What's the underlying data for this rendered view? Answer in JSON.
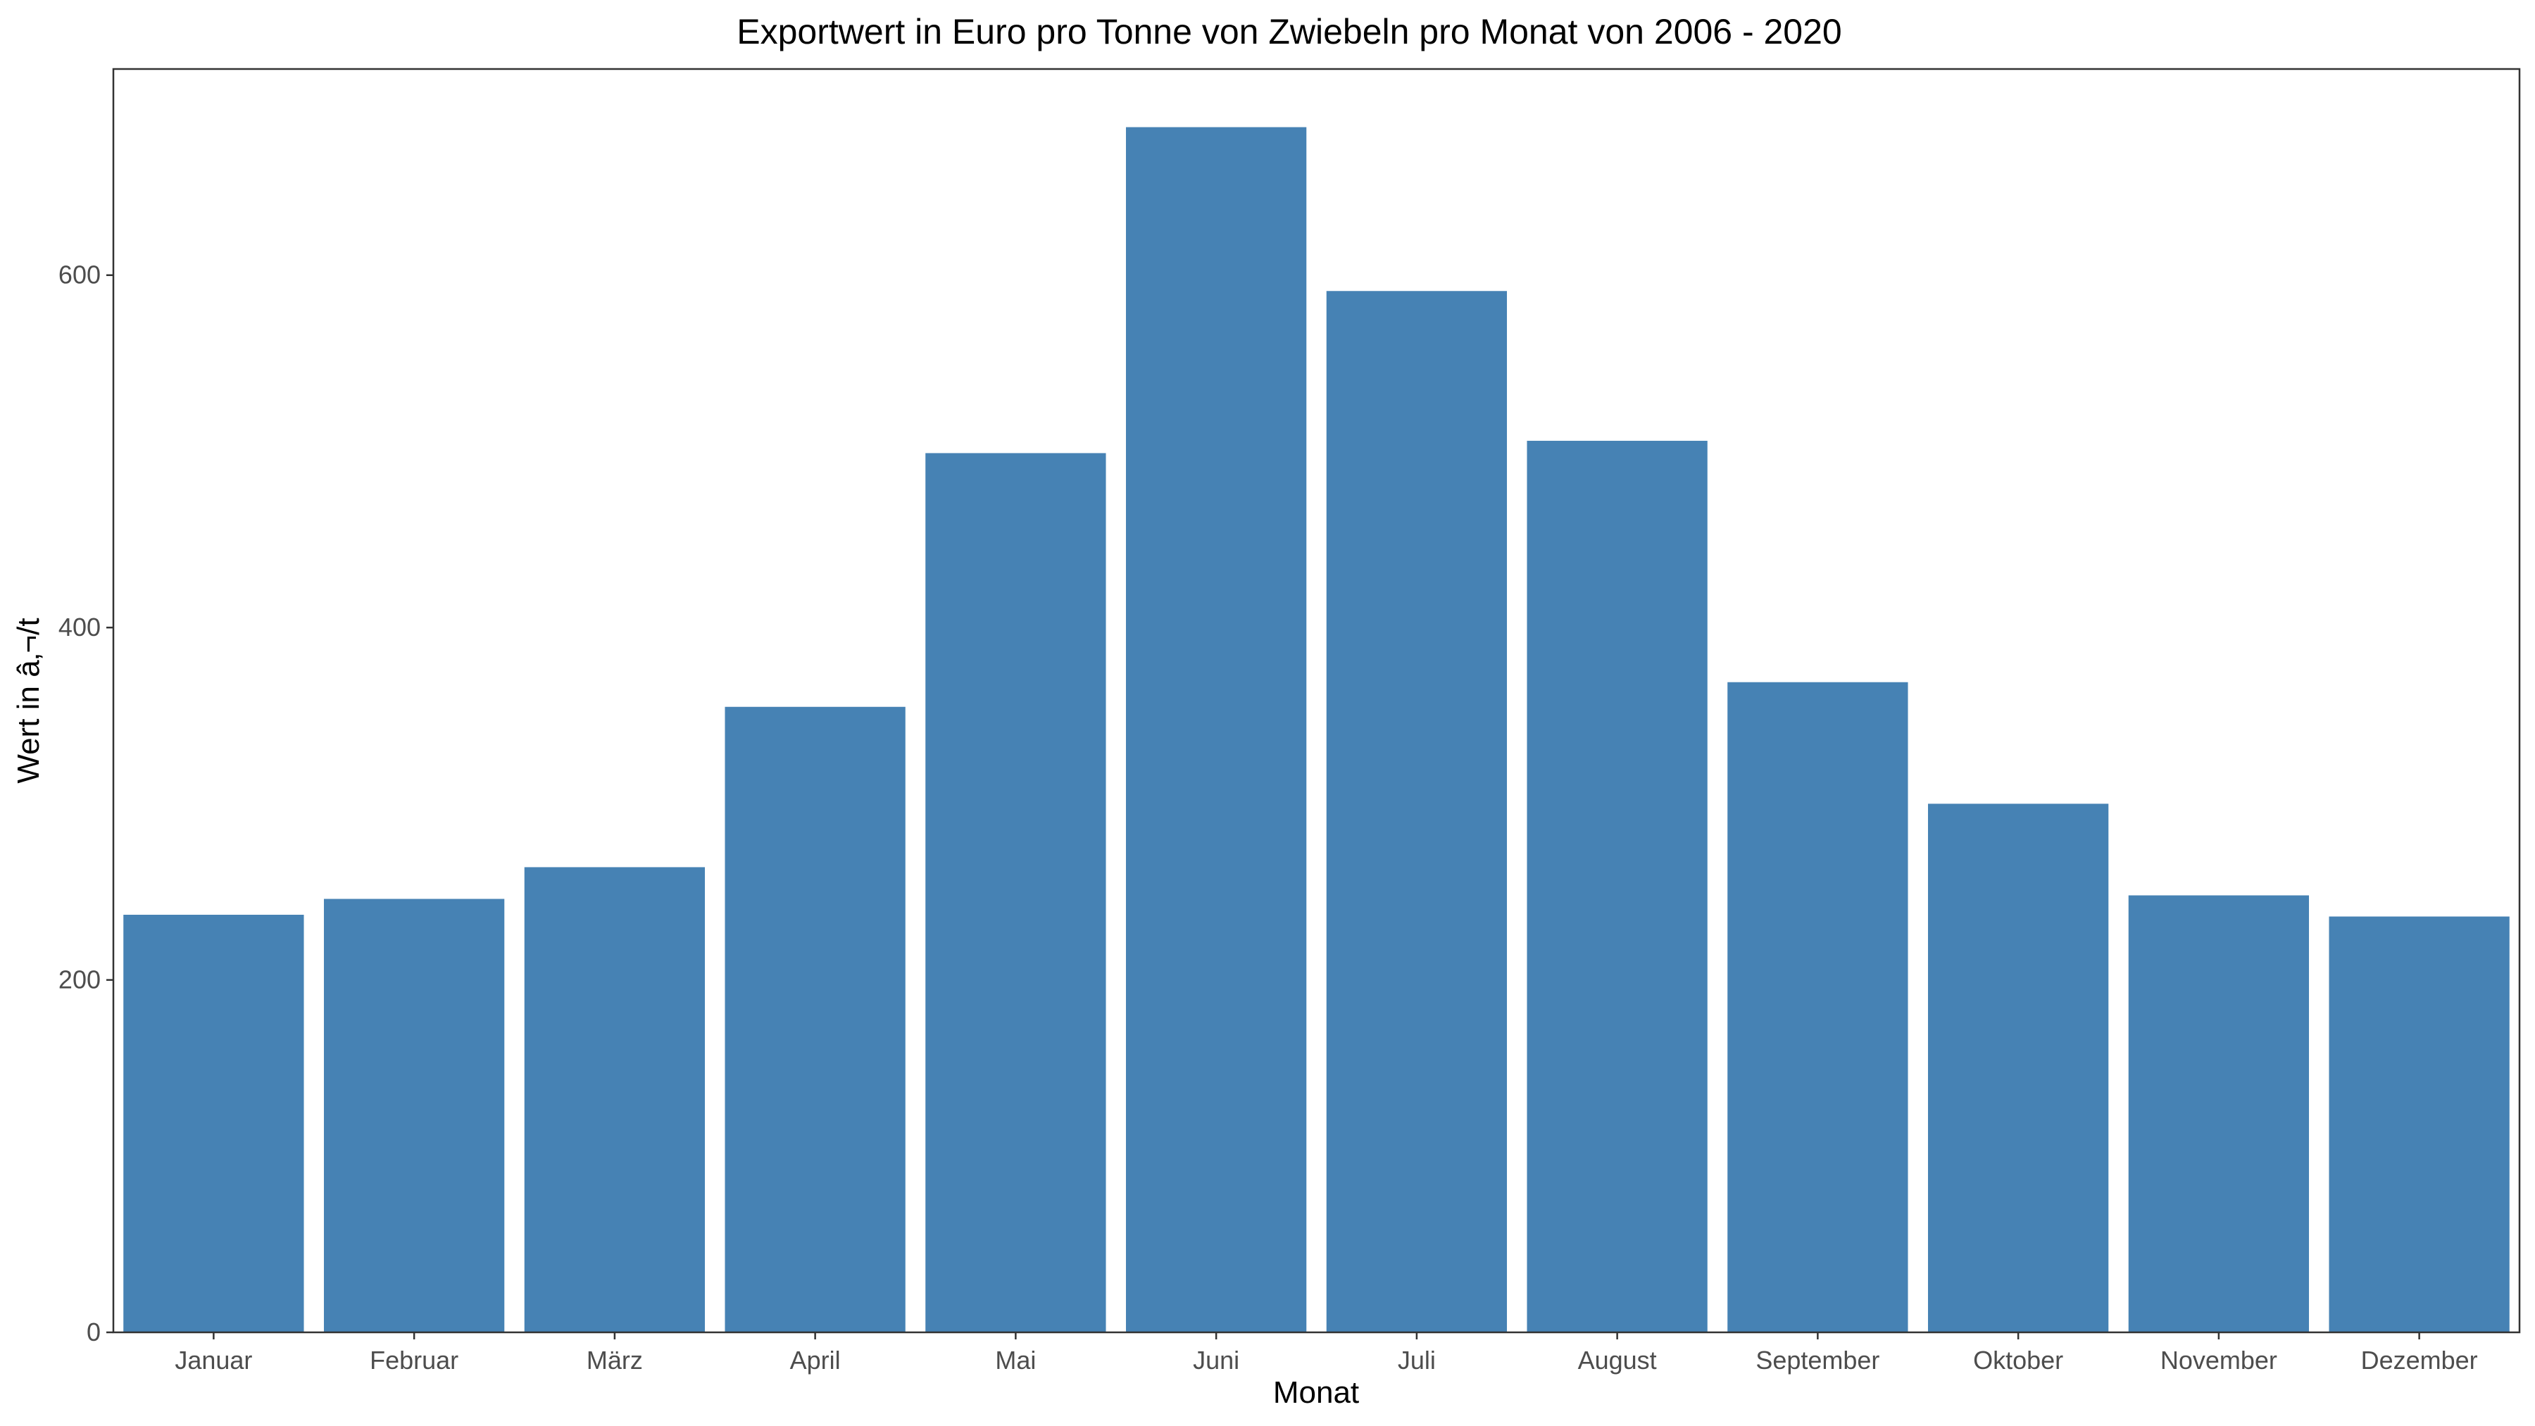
{
  "chart_data": {
    "type": "bar",
    "title": "Exportwert in Euro pro Tonne von Zwiebeln pro Monat von 2006 - 2020",
    "xlabel": "Monat",
    "ylabel": "Wert in â‚¬/t",
    "categories": [
      "Januar",
      "Februar",
      "März",
      "April",
      "Mai",
      "Juni",
      "Juli",
      "August",
      "September",
      "Oktober",
      "November",
      "Dezember"
    ],
    "values": [
      237,
      246,
      264,
      355,
      499,
      684,
      591,
      506,
      369,
      300,
      248,
      236
    ],
    "ylim": [
      0,
      717
    ],
    "yticks": [
      0,
      200,
      400,
      600
    ],
    "grid": false,
    "bar_color": "#4682b4"
  }
}
